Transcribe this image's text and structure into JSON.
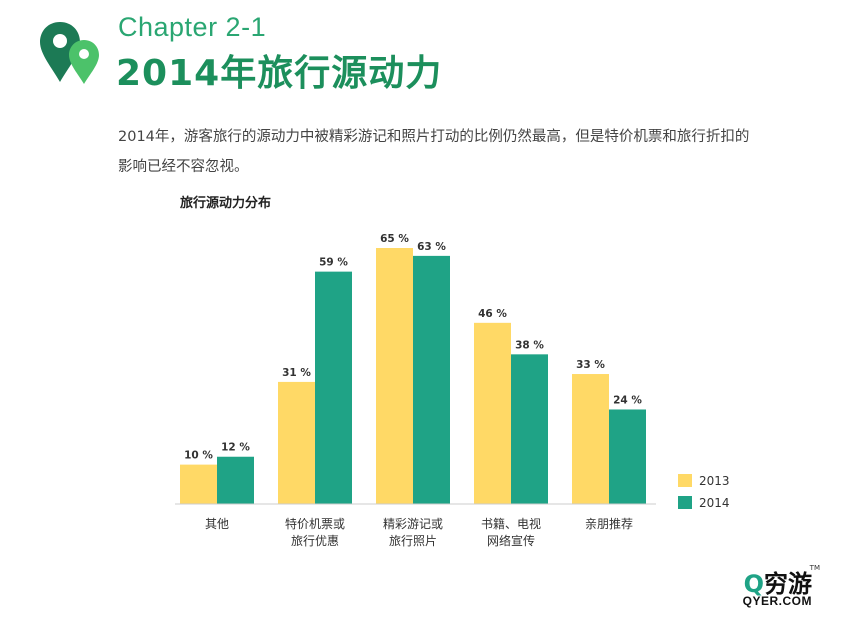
{
  "header": {
    "chapter": "Chapter 2-1",
    "title": "2014年旅行源动力",
    "description_line1": "2014年，游客旅行的源动力中被精彩游记和照片打动的比例仍然最高，但是特价机票和旅行折扣的",
    "description_line2": "影响已经不容忽视。"
  },
  "logo": {
    "name": "穷游",
    "url": "QYER.COM",
    "tm": "TM"
  },
  "colors": {
    "accent_green": "#1c8f5c",
    "series_2013": "#ffd966",
    "series_2014": "#1fa386"
  },
  "chart_data": {
    "type": "bar",
    "title": "旅行源动力分布",
    "categories": [
      [
        "其他"
      ],
      [
        "特价机票或",
        "旅行优惠"
      ],
      [
        "精彩游记或",
        "旅行照片"
      ],
      [
        "书籍、电视",
        "网络宣传"
      ],
      [
        "亲朋推荐"
      ]
    ],
    "series": [
      {
        "name": "2013",
        "values": [
          10,
          31,
          65,
          46,
          33
        ],
        "labels": [
          "10 %",
          "31 %",
          "65 %",
          "46 %",
          "33 %"
        ]
      },
      {
        "name": "2014",
        "values": [
          12,
          59,
          63,
          38,
          24
        ],
        "labels": [
          "12 %",
          "59 %",
          "63 %",
          "38 %",
          "24 %"
        ]
      }
    ],
    "ylim": [
      0,
      65
    ],
    "grid": false,
    "legend": "bottom-right"
  }
}
